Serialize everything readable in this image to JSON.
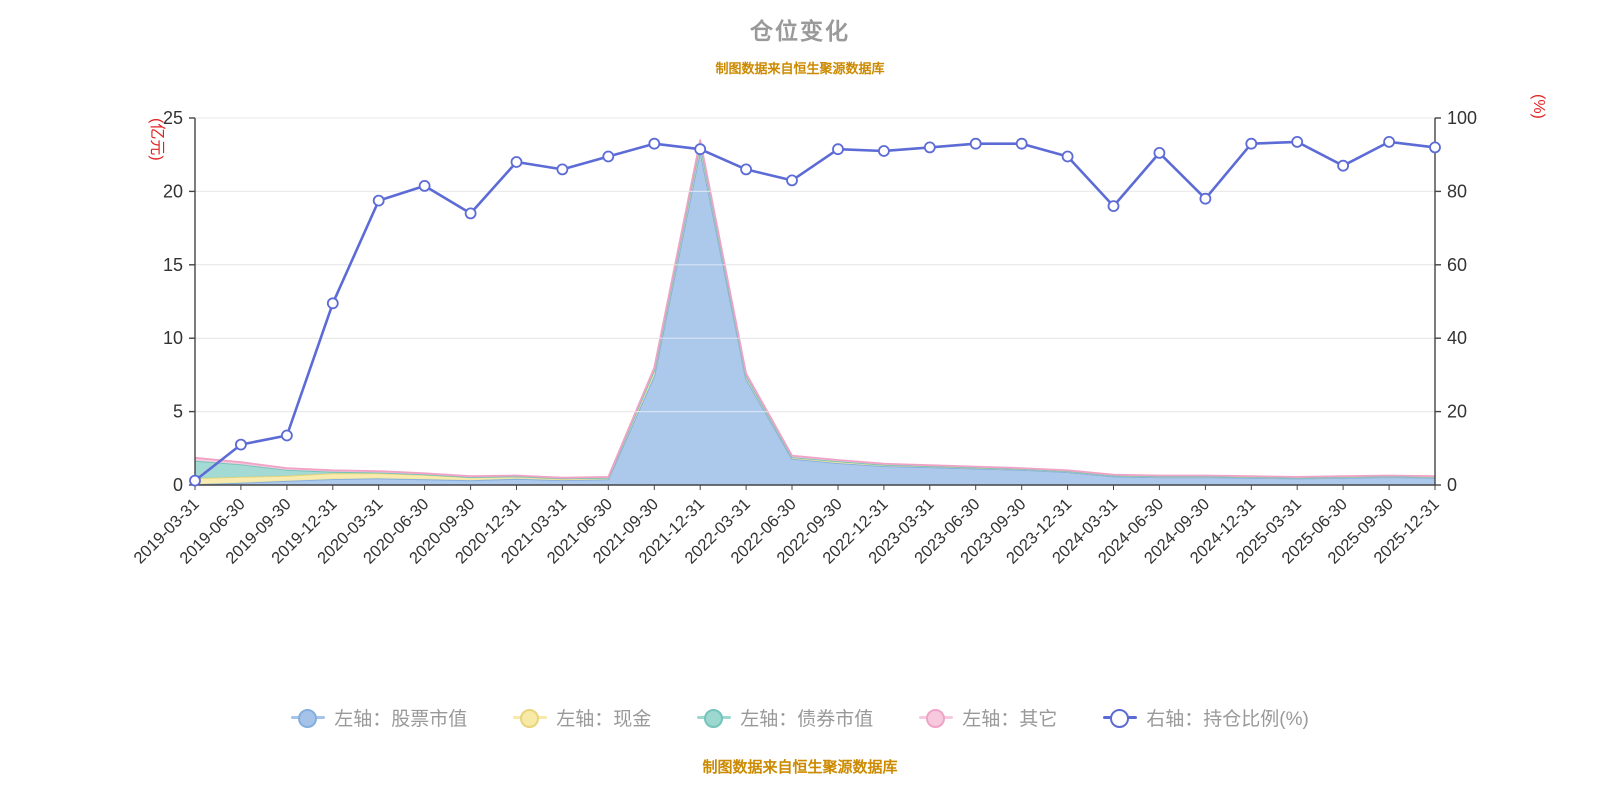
{
  "header": {
    "title": "仓位变化",
    "subtitle": "制图数据来自恒生聚源数据库"
  },
  "footer": {
    "text": "制图数据来自恒生聚源数据库"
  },
  "colors": {
    "title_text": "#9a9a9a",
    "source_text": "#cc8a00",
    "axis_name_text": "#e02222",
    "axis_tick_text": "#333333",
    "axis_line": "#444444",
    "grid_line": "#cccccc",
    "legend_text": "#999999",
    "background": "#ffffff"
  },
  "chart_data": {
    "type": "area",
    "stacked": true,
    "title": "仓位变化",
    "legend_position": "bottom",
    "grid": true,
    "categories": [
      "2019-03-31",
      "2019-06-30",
      "2019-09-30",
      "2019-12-31",
      "2020-03-31",
      "2020-06-30",
      "2020-09-30",
      "2020-12-31",
      "2021-03-31",
      "2021-06-30",
      "2021-09-30",
      "2021-12-31",
      "2022-03-31",
      "2022-06-30",
      "2022-09-30",
      "2022-12-31",
      "2023-03-31",
      "2023-06-30",
      "2023-09-30",
      "2023-12-31",
      "2024-03-31",
      "2024-06-30",
      "2024-09-30",
      "2024-12-31",
      "2025-03-31",
      "2025-06-30",
      "2025-09-30",
      "2025-12-31"
    ],
    "left_axis": {
      "name": "(亿元)",
      "min": 0,
      "max": 25,
      "ticks": [
        0,
        5,
        10,
        15,
        20,
        25
      ]
    },
    "right_axis": {
      "name": "(%)",
      "min": 0,
      "max": 100,
      "ticks": [
        0,
        20,
        40,
        60,
        80,
        100
      ]
    },
    "series": [
      {
        "id": "stock-value",
        "name": "左轴：股票市值",
        "type": "area",
        "axis": "left",
        "color": "#a5c3e9",
        "edge": "#84aedd",
        "values": [
          0.05,
          0.15,
          0.28,
          0.4,
          0.45,
          0.39,
          0.32,
          0.42,
          0.33,
          0.38,
          7.45,
          22.78,
          7.23,
          1.79,
          1.49,
          1.29,
          1.21,
          1.12,
          1.03,
          0.88,
          0.58,
          0.53,
          0.53,
          0.49,
          0.44,
          0.49,
          0.54,
          0.49
        ]
      },
      {
        "id": "cash",
        "name": "左轴：现金",
        "type": "area",
        "axis": "left",
        "color": "#f7e9a6",
        "edge": "#e9d47c",
        "values": [
          0.4,
          0.4,
          0.35,
          0.4,
          0.35,
          0.3,
          0.2,
          0.15,
          0.1,
          0.1,
          0.35,
          0.45,
          0.2,
          0.1,
          0.12,
          0.08,
          0.07,
          0.06,
          0.06,
          0.06,
          0.06,
          0.06,
          0.06,
          0.05,
          0.05,
          0.05,
          0.05,
          0.05
        ]
      },
      {
        "id": "bond-value",
        "name": "左轴：债券市值",
        "type": "area",
        "axis": "left",
        "color": "#9cd7d0",
        "edge": "#72c5ba",
        "values": [
          1.2,
          0.85,
          0.4,
          0.1,
          0.05,
          0.03,
          0.02,
          0.02,
          0.02,
          0.02,
          0.02,
          0.02,
          0.02,
          0.01,
          0.01,
          0.01,
          0.01,
          0.01,
          0.01,
          0.01,
          0.01,
          0.01,
          0.01,
          0.01,
          0.01,
          0.01,
          0.01,
          0.01
        ]
      },
      {
        "id": "other",
        "name": "左轴：其它",
        "type": "area",
        "axis": "left",
        "color": "#f7c9de",
        "edge": "#f0a3c6",
        "values": [
          0.2,
          0.15,
          0.12,
          0.1,
          0.1,
          0.08,
          0.06,
          0.06,
          0.05,
          0.05,
          0.18,
          0.25,
          0.15,
          0.1,
          0.08,
          0.07,
          0.06,
          0.06,
          0.05,
          0.05,
          0.05,
          0.05,
          0.05,
          0.05,
          0.05,
          0.05,
          0.05,
          0.05
        ]
      },
      {
        "id": "position-ratio",
        "name": "右轴：持仓比例(%)",
        "type": "line",
        "axis": "right",
        "color": "#5c6bd5",
        "marker_fill": "#ffffff",
        "values": [
          1.2,
          11,
          13.5,
          49.5,
          77.5,
          81.5,
          74,
          88,
          86,
          89.5,
          93,
          91.5,
          86,
          83,
          91.5,
          91,
          92,
          93,
          93,
          89.5,
          76,
          90.5,
          78,
          93,
          93.5,
          87,
          93.5,
          92
        ]
      }
    ]
  }
}
